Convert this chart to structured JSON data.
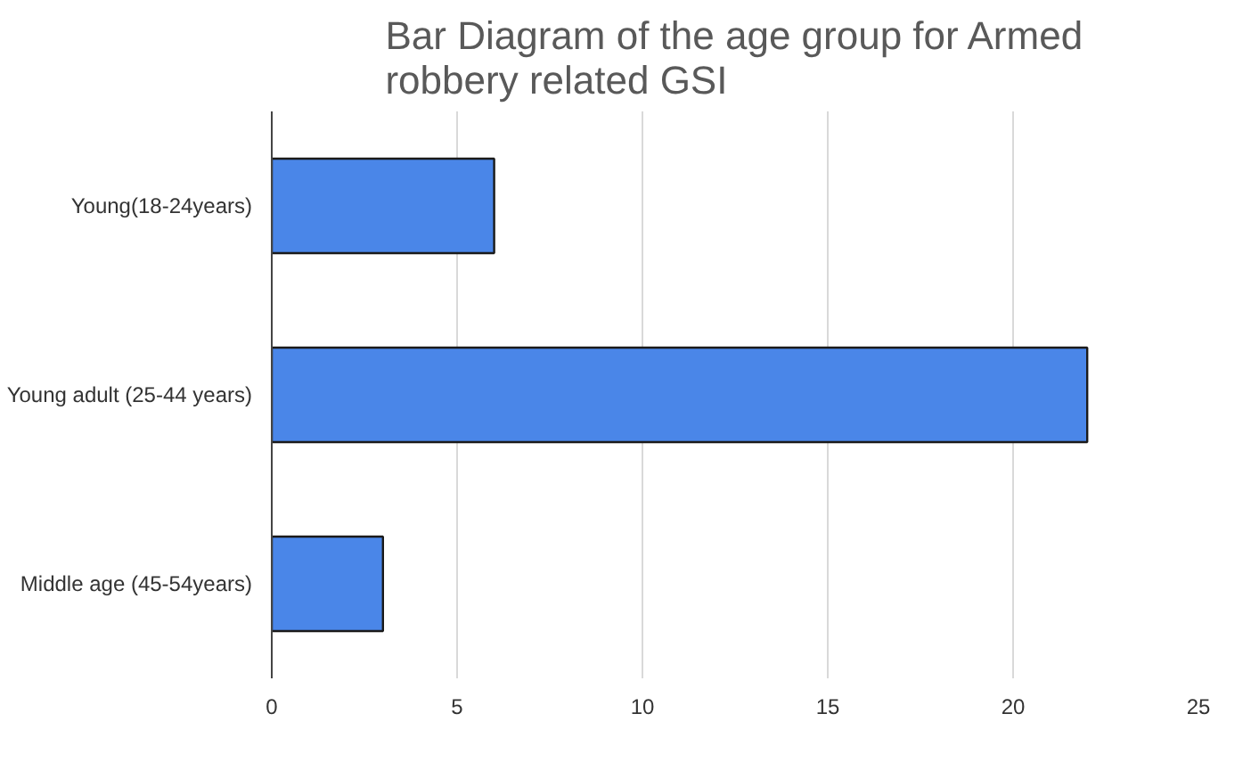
{
  "chart_data": {
    "type": "bar",
    "orientation": "horizontal",
    "title": "Bar Diagram of the age group for Armed robbery related GSI",
    "categories": [
      "Young(18-24years)",
      "Young adult (25-44 years)",
      "Middle age (45-54years)"
    ],
    "values": [
      6,
      22,
      3
    ],
    "color": "#4a86e8",
    "xlim": [
      0,
      25
    ],
    "xticks": [
      0,
      5,
      10,
      15,
      20,
      25
    ],
    "grid": "x"
  }
}
